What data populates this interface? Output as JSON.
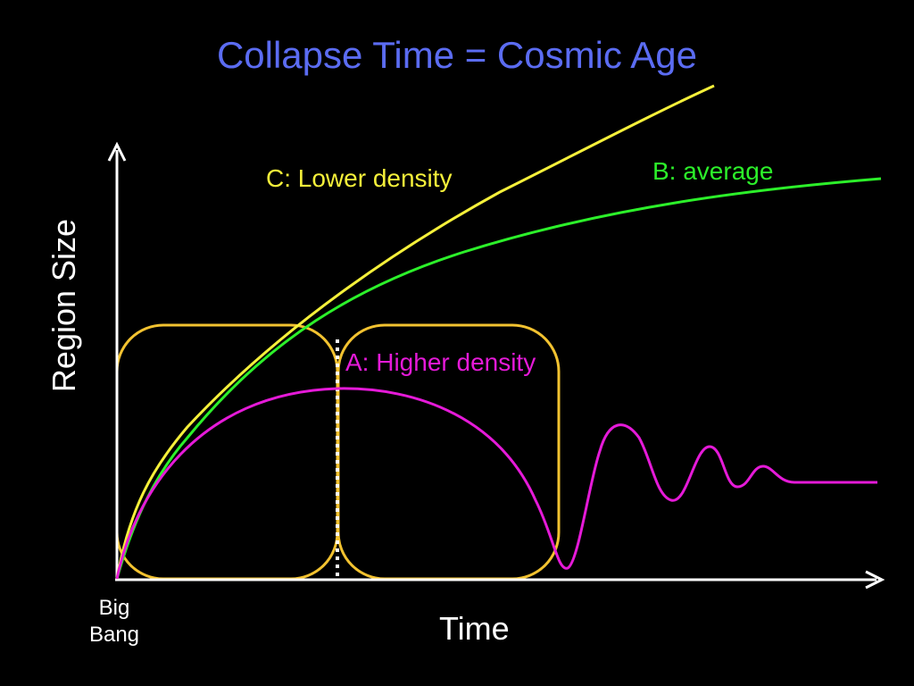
{
  "title": "Collapse Time = Cosmic Age",
  "axes": {
    "x_label": "Time",
    "y_label": "Region Size",
    "origin_label_line1": "Big",
    "origin_label_line2": "Bang"
  },
  "curves": {
    "c": {
      "label": "C: Lower density"
    },
    "b": {
      "label": "B: average"
    },
    "a": {
      "label": "A: Higher density"
    }
  },
  "colors": {
    "background": "#000000",
    "title": "#5b6cf2",
    "axes": "#ffffff",
    "curve_c": "#f5f03a",
    "curve_b": "#2cf02a",
    "curve_a": "#e51ad8",
    "boxes": "#f2c230",
    "divider": "#ffffff"
  }
}
